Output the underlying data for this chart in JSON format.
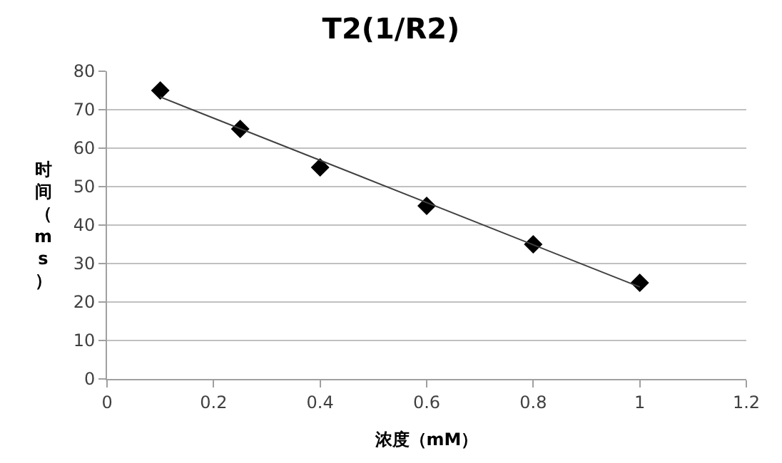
{
  "chart_data": {
    "type": "scatter",
    "title": "T2(1/R2)",
    "xlabel": "浓度（mM）",
    "ylabel": "时间（ms）",
    "x": [
      0.1,
      0.25,
      0.4,
      0.6,
      0.8,
      1
    ],
    "series": [
      {
        "color": "#000000",
        "marker": "diamond",
        "values": [
          75,
          65,
          55,
          45,
          35,
          25
        ]
      },
      {
        "type": "line",
        "color": "#404040",
        "x": [
          0.1,
          1
        ],
        "values": [
          73.3,
          23.9
        ]
      }
    ],
    "xlim": [
      0,
      1.2
    ],
    "xticks": [
      0,
      0.2,
      0.4,
      0.6,
      0.8,
      1,
      1.2
    ],
    "ylim": [
      0,
      80
    ],
    "yticks": [
      0,
      10,
      20,
      30,
      40,
      50,
      60,
      70,
      80
    ],
    "grid": "y",
    "legend": false
  }
}
